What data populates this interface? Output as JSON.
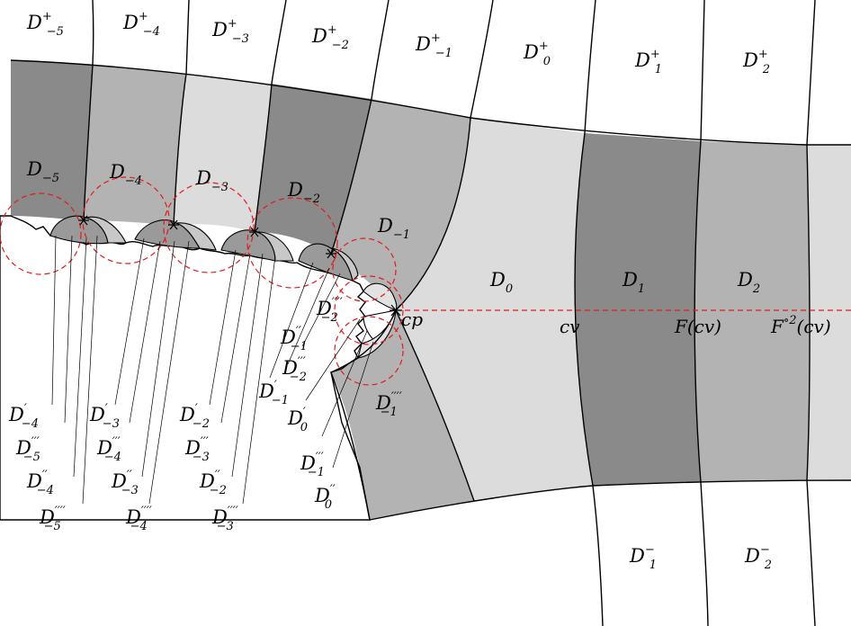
{
  "colors": {
    "dark": "#8a8a8a",
    "mid": "#b3b3b3",
    "light": "#dcdcdc",
    "red": "#e31a1c",
    "stroke": "#000000"
  },
  "labels_plus": [
    {
      "base": "D",
      "sup": "+",
      "sub": "−5"
    },
    {
      "base": "D",
      "sup": "+",
      "sub": "−4"
    },
    {
      "base": "D",
      "sup": "+",
      "sub": "−3"
    },
    {
      "base": "D",
      "sup": "+",
      "sub": "−2"
    },
    {
      "base": "D",
      "sup": "+",
      "sub": "−1"
    },
    {
      "base": "D",
      "sup": "+",
      "sub": "0"
    },
    {
      "base": "D",
      "sup": "+",
      "sub": "1"
    },
    {
      "base": "D",
      "sup": "+",
      "sub": "2"
    }
  ],
  "labels_mid": [
    {
      "base": "D",
      "sup": "",
      "sub": "−5"
    },
    {
      "base": "D",
      "sup": "",
      "sub": "−4"
    },
    {
      "base": "D",
      "sup": "",
      "sub": "−3"
    },
    {
      "base": "D",
      "sup": "",
      "sub": "−2"
    },
    {
      "base": "D",
      "sup": "",
      "sub": "−1"
    },
    {
      "base": "D",
      "sup": "",
      "sub": "0"
    },
    {
      "base": "D",
      "sup": "",
      "sub": "1"
    },
    {
      "base": "D",
      "sup": "",
      "sub": "2"
    }
  ],
  "labels_minus": [
    {
      "base": "D",
      "sup": "−",
      "sub": "1"
    },
    {
      "base": "D",
      "sup": "−",
      "sub": "2"
    }
  ],
  "labels_lower": [
    {
      "base": "D",
      "sup": "′′′′",
      "sub": "−1"
    }
  ],
  "labels_near_cp": [
    {
      "base": "D",
      "sup": "′′′′",
      "sub": "−2"
    },
    {
      "base": "D",
      "sup": "′′",
      "sub": "−1"
    },
    {
      "base": "D",
      "sup": "′′′",
      "sub": "−2"
    },
    {
      "base": "D",
      "sup": "′",
      "sub": "−1"
    },
    {
      "base": "D",
      "sup": "′",
      "sub": "0"
    },
    {
      "base": "D",
      "sup": "′′′",
      "sub": "−1"
    },
    {
      "base": "D",
      "sup": "′′",
      "sub": "0"
    }
  ],
  "labels_bottom": [
    {
      "base": "D",
      "sup": "′",
      "sub": "−4"
    },
    {
      "base": "D",
      "sup": "′′′",
      "sub": "−5"
    },
    {
      "base": "D",
      "sup": "′′",
      "sub": "−4"
    },
    {
      "base": "D",
      "sup": "′′′′",
      "sub": "−5"
    },
    {
      "base": "D",
      "sup": "′",
      "sub": "−3"
    },
    {
      "base": "D",
      "sup": "′′′",
      "sub": "−4"
    },
    {
      "base": "D",
      "sup": "′′",
      "sub": "−3"
    },
    {
      "base": "D",
      "sup": "′′′′",
      "sub": "−4"
    },
    {
      "base": "D",
      "sup": "′",
      "sub": "−2"
    },
    {
      "base": "D",
      "sup": "′′′",
      "sub": "−3"
    },
    {
      "base": "D",
      "sup": "′′",
      "sub": "−2"
    },
    {
      "base": "D",
      "sup": "′′′′",
      "sub": "−3"
    }
  ],
  "points": {
    "cp": "cp",
    "cv": "cv",
    "f_cv": "F(cv)",
    "f2_base": "F",
    "f2_sup": "∘2",
    "f2_arg": "(cv)"
  }
}
